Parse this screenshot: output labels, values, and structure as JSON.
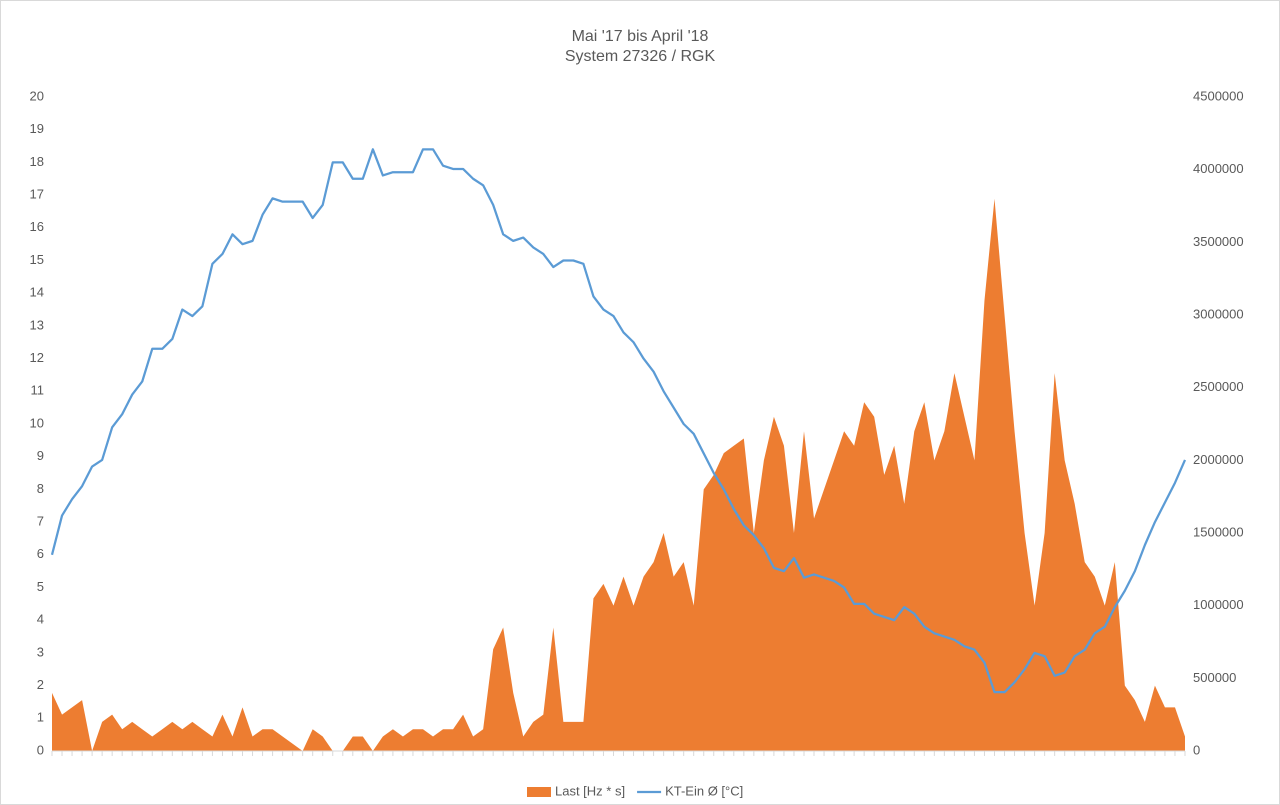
{
  "chart_data": {
    "type": "combo",
    "title": "Mai '17 bis April '18",
    "subtitle": "System 27326 / RGK",
    "categories": [
      null,
      null,
      null,
      null,
      null,
      null,
      null,
      null,
      null,
      null,
      null,
      null,
      null,
      null,
      null,
      null,
      null,
      null,
      null,
      null,
      null,
      null,
      null,
      null,
      null,
      null,
      null,
      null,
      null,
      null,
      null,
      null,
      null,
      null,
      null,
      null,
      null,
      null,
      null,
      null,
      null,
      null,
      null,
      null,
      null,
      null,
      null,
      null,
      null,
      null,
      null,
      null,
      null,
      null,
      null,
      null,
      null,
      null,
      null,
      null,
      null,
      null,
      null,
      null,
      null,
      null,
      null,
      null,
      null,
      null,
      null,
      null,
      null,
      null,
      null,
      null,
      null,
      null,
      null,
      null,
      null,
      null,
      null,
      null,
      null,
      null,
      null,
      null,
      null,
      null,
      null,
      null,
      null,
      null,
      null,
      null,
      null,
      null,
      null,
      null,
      null,
      null,
      null,
      null,
      null,
      null,
      null,
      null,
      null,
      null,
      null,
      null,
      null,
      null
    ],
    "series": [
      {
        "name": "Last [Hz * s]",
        "type": "area",
        "axis": "y2",
        "color": "#ed7d31",
        "values": [
          400000,
          250000,
          300000,
          350000,
          0,
          200000,
          250000,
          150000,
          200000,
          150000,
          100000,
          150000,
          200000,
          150000,
          200000,
          150000,
          100000,
          250000,
          100000,
          300000,
          100000,
          150000,
          150000,
          100000,
          50000,
          0,
          150000,
          100000,
          0,
          0,
          100000,
          100000,
          0,
          100000,
          150000,
          100000,
          150000,
          150000,
          100000,
          150000,
          150000,
          250000,
          100000,
          150000,
          700000,
          850000,
          400000,
          100000,
          200000,
          250000,
          850000,
          200000,
          200000,
          200000,
          1050000,
          1150000,
          1000000,
          1200000,
          1000000,
          1200000,
          1300000,
          1500000,
          1200000,
          1300000,
          1000000,
          1800000,
          1900000,
          2050000,
          2100000,
          2150000,
          1500000,
          2000000,
          2300000,
          2100000,
          1500000,
          2200000,
          1600000,
          1800000,
          2000000,
          2200000,
          2100000,
          2400000,
          2300000,
          1900000,
          2100000,
          1700000,
          2200000,
          2400000,
          2000000,
          2200000,
          2600000,
          2300000,
          2000000,
          3100000,
          3800000,
          3000000,
          2200000,
          1500000,
          1000000,
          1500000,
          2600000,
          2000000,
          1700000,
          1300000,
          1200000,
          1000000,
          1300000,
          450000,
          350000,
          200000,
          450000,
          300000,
          300000,
          100000
        ]
      },
      {
        "name": "KT-Ein Ø [°C]",
        "type": "line",
        "color": "#5b9bd5",
        "values": [
          6.0,
          7.2,
          7.7,
          8.1,
          8.7,
          8.9,
          9.9,
          10.3,
          10.9,
          11.3,
          12.3,
          12.3,
          12.6,
          13.5,
          13.3,
          13.6,
          14.9,
          15.2,
          15.8,
          15.5,
          15.6,
          16.4,
          16.9,
          16.8,
          16.8,
          16.8,
          16.3,
          16.7,
          18.0,
          18.0,
          17.5,
          17.5,
          18.4,
          17.6,
          17.7,
          17.7,
          17.7,
          18.4,
          18.4,
          17.9,
          17.8,
          17.8,
          17.5,
          17.3,
          16.7,
          15.8,
          15.6,
          15.7,
          15.4,
          15.2,
          14.8,
          15.0,
          15.0,
          14.9,
          13.9,
          13.5,
          13.3,
          12.8,
          12.5,
          12.0,
          11.6,
          11.0,
          10.5,
          10.0,
          9.7,
          9.1,
          8.5,
          8.0,
          7.4,
          6.9,
          6.6,
          6.2,
          5.6,
          5.5,
          5.9,
          5.3,
          5.4,
          5.3,
          5.2,
          5.0,
          4.5,
          4.5,
          4.2,
          4.1,
          4.0,
          4.4,
          4.2,
          3.8,
          3.6,
          3.5,
          3.4,
          3.2,
          3.1,
          2.7,
          1.8,
          1.8,
          2.1,
          2.5,
          3.0,
          2.9,
          2.3,
          2.4,
          2.9,
          3.1,
          3.6,
          3.8,
          4.4,
          4.9,
          5.5,
          6.3,
          7.0,
          7.6,
          8.2,
          8.9
        ]
      }
    ],
    "ylim": [
      0,
      20
    ],
    "yticks": [
      0,
      1,
      2,
      3,
      4,
      5,
      6,
      7,
      8,
      9,
      10,
      11,
      12,
      13,
      14,
      15,
      16,
      17,
      18,
      19,
      20
    ],
    "y2lim": [
      0,
      4500000
    ],
    "y2ticks": [
      0,
      500000,
      1000000,
      1500000,
      2000000,
      2500000,
      3000000,
      3500000,
      4000000,
      4500000
    ],
    "legend": "bottom"
  }
}
